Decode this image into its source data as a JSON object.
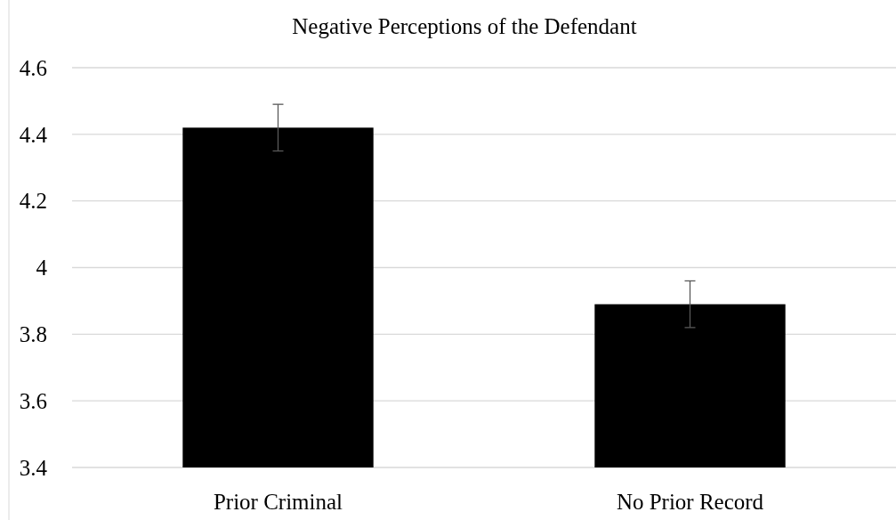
{
  "chart_data": {
    "type": "bar",
    "title": "Negative Perceptions of the Defendant",
    "categories": [
      "Prior Criminal",
      "No Prior Record"
    ],
    "values": [
      4.42,
      3.89
    ],
    "errors": [
      0.07,
      0.07
    ],
    "color": "#000000",
    "ylim": [
      3.4,
      4.6
    ],
    "yticks": [
      3.4,
      3.6,
      3.8,
      4,
      4.2,
      4.4,
      4.6
    ],
    "grid": "y"
  }
}
